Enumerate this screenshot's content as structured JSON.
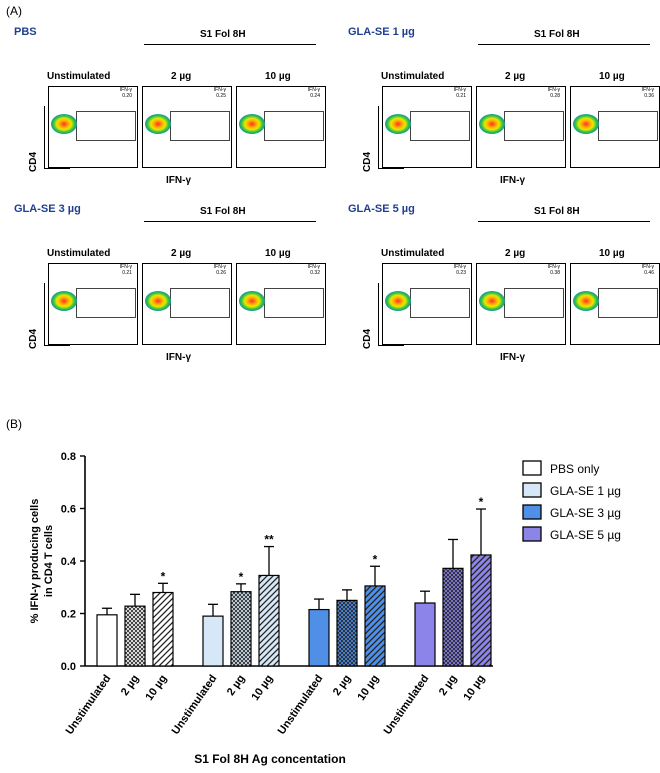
{
  "panel_a_label": "(A)",
  "panel_b_label": "(B)",
  "flow_groups": [
    {
      "title": "PBS",
      "header": "S1 Fol 8H",
      "cols": [
        "Unstimulated",
        "2 µg",
        "10 µg"
      ],
      "gate_label": "IFN-γ",
      "values": [
        "0.20",
        "0.25",
        "0.24"
      ],
      "ylabel": "CD4",
      "xlabel": "IFN-γ"
    },
    {
      "title": "GLA-SE 1 µg",
      "header": "S1 Fol 8H",
      "cols": [
        "Unstimulated",
        "2 µg",
        "10 µg"
      ],
      "gate_label": "IFN-γ",
      "values": [
        "0.21",
        "0.28",
        "0.36"
      ],
      "ylabel": "CD4",
      "xlabel": "IFN-γ"
    },
    {
      "title": "GLA-SE 3 µg",
      "header": "S1 Fol 8H",
      "cols": [
        "Unstimulated",
        "2 µg",
        "10 µg"
      ],
      "gate_label": "IFN-γ",
      "values": [
        "0.21",
        "0.26",
        "0.32"
      ],
      "ylabel": "CD4",
      "xlabel": "IFN-γ"
    },
    {
      "title": "GLA-SE 5 µg",
      "header": "S1 Fol 8H",
      "cols": [
        "Unstimulated",
        "2 µg",
        "10 µg"
      ],
      "gate_label": "IFN-γ",
      "values": [
        "0.23",
        "0.38",
        "0.46"
      ],
      "ylabel": "CD4",
      "xlabel": "IFN-γ"
    }
  ],
  "chart_data": {
    "type": "bar",
    "title": "",
    "ylabel_line1": "% IFN-γ producing cells",
    "ylabel_line2": "in CD4 T cells",
    "xlabel": "S1 Fol 8H Ag concentation",
    "ylim": [
      0,
      0.8
    ],
    "yticks": [
      "0.0",
      "0.2",
      "0.4",
      "0.6",
      "0.8"
    ],
    "categories": [
      "Unstimulated",
      "2 µg",
      "10 µg"
    ],
    "legend_position": "top-right",
    "series": [
      {
        "name": "PBS only",
        "color": "#ffffff",
        "values": [
          0.195,
          0.228,
          0.28
        ],
        "errors": [
          0.025,
          0.045,
          0.035
        ],
        "sig": [
          "",
          "",
          "*"
        ]
      },
      {
        "name": "GLA-SE 1 µg",
        "color": "#d6e8f7",
        "values": [
          0.19,
          0.283,
          0.345
        ],
        "errors": [
          0.045,
          0.03,
          0.11
        ],
        "sig": [
          "",
          "*",
          "**"
        ]
      },
      {
        "name": "GLA-SE 3 µg",
        "color": "#4f8fe6",
        "values": [
          0.215,
          0.25,
          0.305
        ],
        "errors": [
          0.04,
          0.04,
          0.075
        ],
        "sig": [
          "",
          "",
          "*"
        ]
      },
      {
        "name": "GLA-SE 5 µg",
        "color": "#8c84e8",
        "values": [
          0.24,
          0.372,
          0.423
        ],
        "errors": [
          0.045,
          0.11,
          0.175
        ],
        "sig": [
          "",
          "",
          "*"
        ]
      }
    ]
  }
}
